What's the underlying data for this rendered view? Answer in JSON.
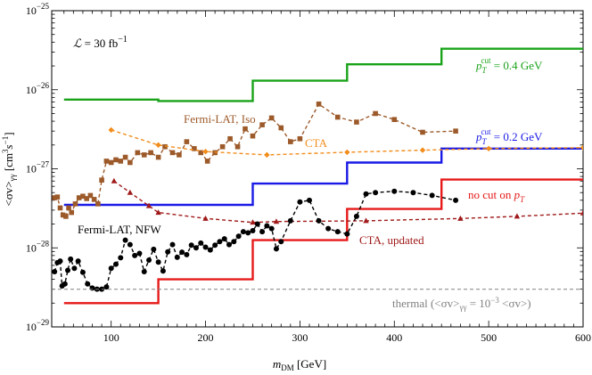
{
  "chart_data": {
    "type": "line",
    "title": "",
    "xlabel": "m",
    "xlabel_sub": "DM",
    "xlabel_unit": " [GeV]",
    "ylabel": "<σv>",
    "ylabel_sub": "γγ",
    "ylabel_unit": " [cm",
    "ylabel_unit_sup1": "3",
    "ylabel_unit_mid": "s",
    "ylabel_unit_sup2": "−1",
    "ylabel_unit_end": "]",
    "xlim": [
      37,
      600
    ],
    "ylim": [
      1e-29,
      1e-25
    ],
    "yscale": "log",
    "grid": false,
    "x_ticks": [
      100,
      200,
      300,
      400,
      500,
      600
    ],
    "x_tick_labels": [
      "100",
      "200",
      "300",
      "400",
      "500",
      "600"
    ],
    "y_ticks": [
      {
        "base": "10",
        "exp": "−29",
        "value": 1e-29
      },
      {
        "base": "10",
        "exp": "−28",
        "value": 1e-28
      },
      {
        "base": "10",
        "exp": "−27",
        "value": 1e-27
      },
      {
        "base": "10",
        "exp": "−26",
        "value": 1e-26
      },
      {
        "base": "10",
        "exp": "−25",
        "value": 1e-25
      }
    ],
    "luminosity": {
      "symbol": "ℒ",
      "text": " = 30 fb",
      "sup": "−1"
    },
    "series": [
      {
        "name": "",
        "kind": "step",
        "color": "#1aa31a",
        "label_prefix": "p",
        "label_sub": "T",
        "label_sup": "cut",
        "label_suffix": " = 0.4 GeV",
        "x": [
          50,
          150,
          150,
          250,
          250,
          350,
          350,
          450,
          450,
          600
        ],
        "y": [
          7.5e-27,
          7.5e-27,
          7.2e-27,
          7.2e-27,
          1.3e-26,
          1.3e-26,
          2.1e-26,
          2.1e-26,
          3.3e-26,
          3.3e-26
        ]
      },
      {
        "name": "",
        "kind": "step",
        "color": "#1a1ae6",
        "label_prefix": "p",
        "label_sub": "T",
        "label_sup": "cut",
        "label_suffix": " = 0.2 GeV",
        "x": [
          50,
          250,
          250,
          350,
          350,
          450,
          450,
          600
        ],
        "y": [
          3.5e-28,
          3.5e-28,
          6.5e-28,
          6.5e-28,
          1.2e-27,
          1.2e-27,
          1.8e-27,
          1.8e-27
        ]
      },
      {
        "name": "",
        "kind": "step",
        "color": "#e61a1a",
        "label_prefix": "no cut on ",
        "label_p": "p",
        "label_sub": "T",
        "x": [
          50,
          150,
          150,
          250,
          250,
          350,
          350,
          450,
          450,
          600
        ],
        "y": [
          2e-29,
          2e-29,
          4e-29,
          4e-29,
          1.25e-28,
          1.25e-28,
          3.1e-28,
          3.1e-28,
          7.3e-28,
          7.3e-28
        ]
      },
      {
        "name": "Fermi-LAT, Iso",
        "kind": "marker-line",
        "marker": "square",
        "color": "#9c5a2a",
        "x": [
          40,
          43,
          46,
          49,
          52,
          55,
          58,
          62,
          66,
          70,
          74,
          78,
          82,
          86,
          90,
          95,
          100,
          105,
          110,
          115,
          120,
          128,
          135,
          142,
          150,
          157,
          165,
          172,
          180,
          188,
          195,
          202,
          210,
          218,
          226,
          234,
          242,
          250,
          260,
          270,
          280,
          290,
          300,
          320,
          340,
          360,
          380,
          400,
          430,
          465
        ],
        "y": [
          4.3e-28,
          4.4e-28,
          3.2e-28,
          2.6e-28,
          2.5e-28,
          3.2e-28,
          2.8e-28,
          3.6e-28,
          4.3e-28,
          4.5e-28,
          4.2e-28,
          4.6e-28,
          4.1e-28,
          3.6e-28,
          7.2e-28,
          1.25e-27,
          1.2e-27,
          1.3e-27,
          1.25e-27,
          1.4e-27,
          1.2e-27,
          1.6e-27,
          1.5e-27,
          1.6e-27,
          1.4e-27,
          1.9e-27,
          1.6e-27,
          1.5e-27,
          2.2e-27,
          1.8e-27,
          1.6e-27,
          1.25e-27,
          1.6e-27,
          1.9e-27,
          2.4e-27,
          1.9e-27,
          3.2e-27,
          2.6e-27,
          3.6e-27,
          4.4e-27,
          3.3e-27,
          2.2e-27,
          2.4e-27,
          6.6e-27,
          4.5e-27,
          3.9e-27,
          5e-27,
          4.2e-27,
          2.9e-27,
          3e-27
        ]
      },
      {
        "name": "CTA",
        "kind": "marker-line",
        "marker": "diamond",
        "color": "#f28c1a",
        "x": [
          100,
          150,
          200,
          265,
          350,
          430,
          500,
          600
        ],
        "y": [
          3.1e-27,
          2e-27,
          1.65e-27,
          1.5e-27,
          1.62e-27,
          1.72e-27,
          1.8e-27,
          1.85e-27
        ]
      },
      {
        "name": "CTA, updated",
        "kind": "marker-line",
        "marker": "triangle",
        "color": "#a01a1a",
        "x": [
          103,
          120,
          140,
          150,
          200,
          250,
          275,
          370,
          470,
          530,
          600
        ],
        "y": [
          7e-28,
          5e-28,
          3.4e-28,
          2.8e-28,
          2.35e-28,
          2.1e-28,
          2.15e-28,
          2.2e-28,
          2.35e-28,
          2.5e-28,
          2.75e-28
        ]
      },
      {
        "name": "Fermi-LAT, NFW",
        "kind": "marker-line",
        "marker": "circle",
        "color": "#000000",
        "x": [
          40,
          43,
          46,
          48,
          51,
          54,
          57,
          61,
          65,
          70,
          75,
          80,
          85,
          90,
          95,
          100,
          105,
          110,
          115,
          120,
          125,
          130,
          135,
          140,
          145,
          150,
          155,
          160,
          165,
          170,
          175,
          180,
          185,
          190,
          195,
          200,
          205,
          210,
          215,
          220,
          225,
          230,
          235,
          240,
          245,
          250,
          255,
          260,
          265,
          270,
          275,
          280,
          290,
          300,
          310,
          320,
          330,
          340,
          350,
          360,
          370,
          380,
          400,
          420,
          440,
          465
        ],
        "y": [
          5e-29,
          6.5e-29,
          6.8e-29,
          3.3e-29,
          3.5e-29,
          5.2e-29,
          7.2e-29,
          5.5e-29,
          6.8e-29,
          4.9e-29,
          3.5e-29,
          3.1e-29,
          3e-29,
          3e-29,
          3.2e-29,
          5.5e-29,
          6.2e-29,
          7.5e-29,
          1.25e-28,
          1.1e-28,
          8e-29,
          8.5e-29,
          5e-29,
          7e-29,
          9.6e-29,
          6.6e-29,
          5.1e-29,
          8.9e-29,
          1.1e-28,
          7.6e-29,
          8.8e-29,
          8.2e-29,
          1.08e-28,
          1e-28,
          1.15e-28,
          1.02e-28,
          9.4e-29,
          1.08e-28,
          1.2e-28,
          1.3e-28,
          1.1e-28,
          1.2e-28,
          1.4e-28,
          1.6e-28,
          1.55e-28,
          1.65e-28,
          2e-28,
          1.6e-28,
          1.9e-28,
          1.75e-28,
          9.7e-29,
          1.2e-28,
          2.2e-28,
          3.8e-28,
          4e-28,
          2.2e-28,
          1.75e-28,
          1.6e-28,
          1.5e-28,
          2.5e-28,
          4.8e-28,
          5e-28,
          5.2e-28,
          5e-28,
          4.6e-28,
          4e-28
        ]
      },
      {
        "name": "",
        "kind": "dashed",
        "color": "#808080",
        "label_prefix": "thermal (<σv>",
        "label_sub": "γγ",
        "label_mid": " = 10",
        "label_sup": "−3",
        "label_suffix": " <σv>)",
        "x": [
          37,
          600
        ],
        "y": [
          3e-29,
          3e-29
        ]
      }
    ]
  }
}
